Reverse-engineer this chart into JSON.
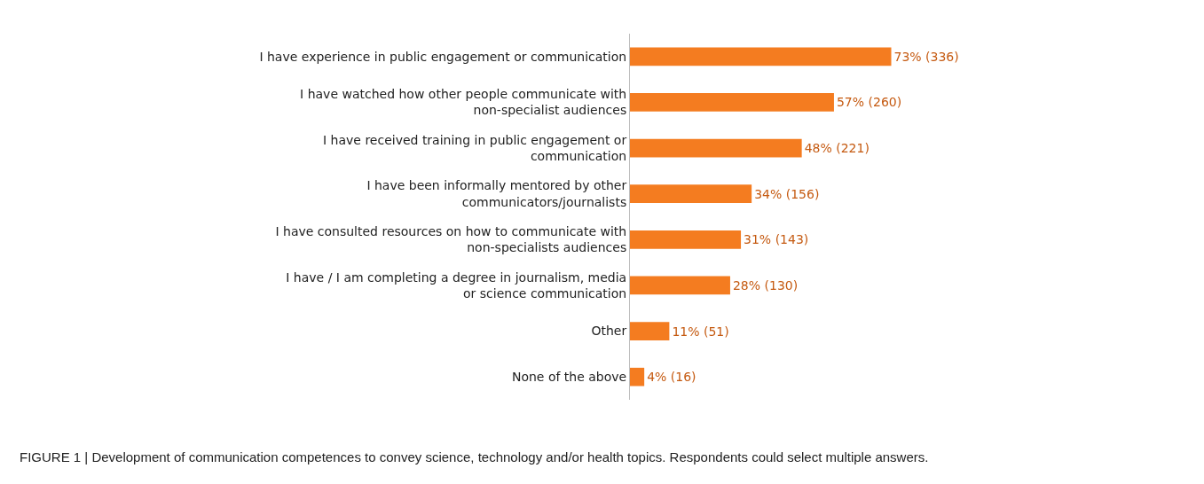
{
  "chart_data": {
    "type": "bar",
    "orientation": "horizontal",
    "color": "#f47c20",
    "categories": [
      "I have experience in public engagement or communication",
      "I have watched how other people communicate with non-specialist audiences",
      "I have received training in public engagement or communication",
      "I have been informally mentored by other communicators/journalists",
      "I have consulted resources on how to communicate with non-specialists audiences",
      "I have / I am completing a degree in journalism, media or science communication",
      "Other",
      "None of the above"
    ],
    "values": [
      73,
      57,
      48,
      34,
      31,
      28,
      11,
      4
    ],
    "value_labels": [
      "73% (336)",
      "57% (260)",
      "48% (221)",
      "34% (156)",
      "31% (143)",
      "28% (130)",
      "11% (51)",
      "4% (16)"
    ],
    "annotations": [
      "FIGURE 1 | Development of communication competences to convey science, technology and/or health topics. Respondents could select multiple answers."
    ]
  }
}
